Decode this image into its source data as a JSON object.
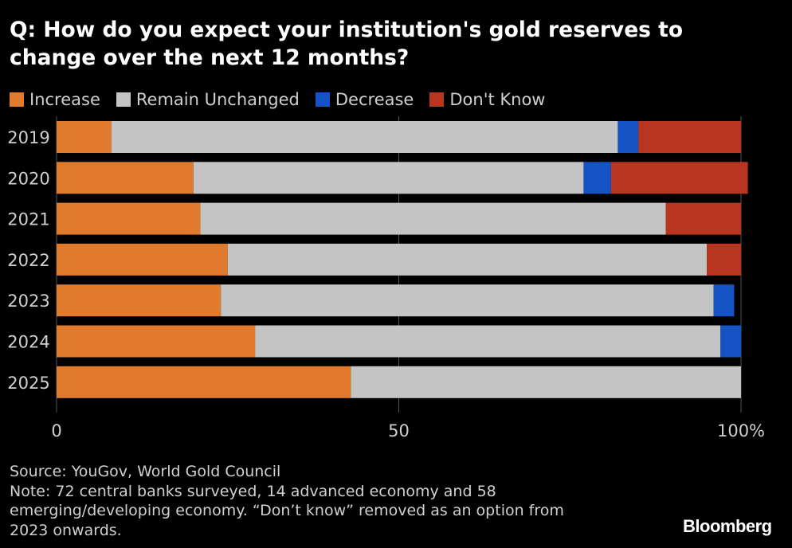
{
  "title": "Q: How do you expect your institution's gold reserves to change over the next 12 months?",
  "colors": {
    "background": "#000000",
    "increase": "#e07b2e",
    "remain_unchanged": "#c4c4c4",
    "decrease": "#1553c4",
    "dont_know": "#b8351f",
    "text": "#ffffff",
    "axis_text": "#cfcfcf"
  },
  "chart_data": {
    "type": "bar",
    "orientation": "horizontal",
    "stacked": true,
    "categories": [
      "2019",
      "2020",
      "2021",
      "2022",
      "2023",
      "2024",
      "2025"
    ],
    "series": [
      {
        "name": "Increase",
        "color": "#e07b2e",
        "values": [
          8,
          20,
          21,
          25,
          24,
          29,
          43
        ]
      },
      {
        "name": "Remain Unchanged",
        "color": "#c4c4c4",
        "values": [
          74,
          57,
          68,
          70,
          72,
          68,
          57
        ]
      },
      {
        "name": "Decrease",
        "color": "#1553c4",
        "values": [
          3,
          4,
          0,
          0,
          3,
          3,
          0
        ]
      },
      {
        "name": "Don't Know",
        "color": "#b8351f",
        "values": [
          15,
          20,
          11,
          5,
          0,
          0,
          0
        ]
      }
    ],
    "xlim": [
      0,
      100
    ],
    "xticks": [
      0,
      50,
      100
    ],
    "xtick_labels": [
      "0",
      "50",
      "100%"
    ],
    "grid": true,
    "legend_placement": "top-left"
  },
  "footer": {
    "source": "Source: YouGov, World Gold Council",
    "note_lines": [
      "Note: 72 central banks surveyed, 14 advanced economy and 58",
      "emerging/developing economy. “Don’t know” removed as an option from",
      "2023 onwards."
    ]
  },
  "brand": "Bloomberg"
}
